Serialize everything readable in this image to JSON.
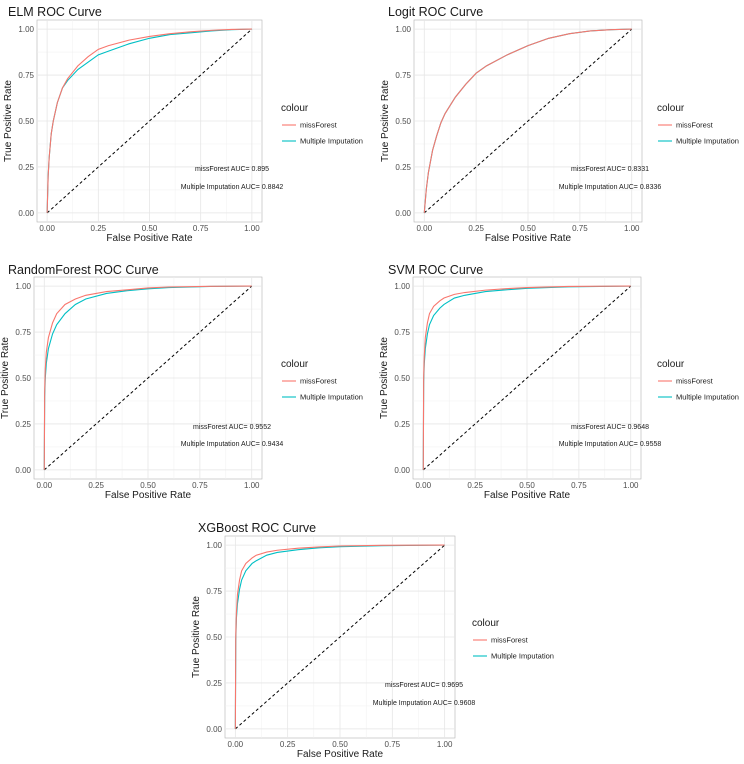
{
  "figure": {
    "legend": {
      "title": "colour",
      "entries": [
        {
          "label": "missForest",
          "color": "#F8766D"
        },
        {
          "label": "Multiple Imputation",
          "color": "#00BFC4"
        }
      ]
    }
  },
  "chart_data": [
    {
      "type": "line",
      "title": "ELM ROC Curve",
      "xlabel": "False Positive Rate",
      "ylabel": "True Positive Rate",
      "xlim": [
        0,
        1
      ],
      "ylim": [
        0,
        1
      ],
      "ticks": [
        "0.00",
        "0.25",
        "0.50",
        "0.75",
        "1.00"
      ],
      "diagonal": true,
      "series": [
        {
          "name": "missForest",
          "color": "#F8766D",
          "x": [
            0,
            0.005,
            0.01,
            0.02,
            0.03,
            0.05,
            0.075,
            0.1,
            0.15,
            0.2,
            0.25,
            0.3,
            0.4,
            0.5,
            0.6,
            0.7,
            0.8,
            0.9,
            1.0
          ],
          "y": [
            0,
            0.2,
            0.3,
            0.43,
            0.5,
            0.6,
            0.68,
            0.73,
            0.8,
            0.85,
            0.89,
            0.91,
            0.94,
            0.96,
            0.975,
            0.985,
            0.993,
            0.998,
            1.0
          ]
        },
        {
          "name": "Multiple Imputation",
          "color": "#00BFC4",
          "x": [
            0,
            0.005,
            0.01,
            0.02,
            0.03,
            0.05,
            0.075,
            0.1,
            0.15,
            0.2,
            0.25,
            0.3,
            0.4,
            0.5,
            0.6,
            0.7,
            0.8,
            0.9,
            1.0
          ],
          "y": [
            0,
            0.2,
            0.3,
            0.43,
            0.5,
            0.6,
            0.68,
            0.72,
            0.78,
            0.82,
            0.86,
            0.88,
            0.92,
            0.95,
            0.97,
            0.98,
            0.99,
            0.997,
            1.0
          ]
        }
      ],
      "annotations": [
        "missForest AUC= 0.895",
        "Multiple Imputation AUC= 0.8842"
      ]
    },
    {
      "type": "line",
      "title": "Logit ROC Curve",
      "xlabel": "False Positive Rate",
      "ylabel": "True Positive Rate",
      "xlim": [
        0,
        1
      ],
      "ylim": [
        0,
        1
      ],
      "ticks": [
        "0.00",
        "0.25",
        "0.50",
        "0.75",
        "1.00"
      ],
      "diagonal": true,
      "series": [
        {
          "name": "missForest",
          "color": "#F8766D",
          "x": [
            0,
            0.01,
            0.02,
            0.04,
            0.06,
            0.08,
            0.1,
            0.15,
            0.2,
            0.25,
            0.3,
            0.4,
            0.5,
            0.6,
            0.7,
            0.8,
            0.9,
            1.0
          ],
          "y": [
            0,
            0.13,
            0.22,
            0.34,
            0.42,
            0.49,
            0.54,
            0.63,
            0.7,
            0.76,
            0.8,
            0.86,
            0.91,
            0.95,
            0.975,
            0.99,
            0.997,
            1.0
          ]
        },
        {
          "name": "Multiple Imputation",
          "color": "#00BFC4",
          "x": [
            0,
            0.01,
            0.02,
            0.04,
            0.06,
            0.08,
            0.1,
            0.15,
            0.2,
            0.25,
            0.3,
            0.4,
            0.5,
            0.6,
            0.7,
            0.8,
            0.9,
            1.0
          ],
          "y": [
            0,
            0.13,
            0.22,
            0.34,
            0.42,
            0.49,
            0.54,
            0.63,
            0.7,
            0.76,
            0.8,
            0.86,
            0.91,
            0.95,
            0.975,
            0.99,
            0.997,
            1.0
          ]
        }
      ],
      "annotations": [
        "missForest AUC= 0.8331",
        "Multiple Imputation AUC= 0.8336"
      ]
    },
    {
      "type": "line",
      "title": "RandomForest ROC Curve",
      "xlabel": "False Positive Rate",
      "ylabel": "True Positive Rate",
      "xlim": [
        0,
        1
      ],
      "ylim": [
        0,
        1
      ],
      "ticks": [
        "0.00",
        "0.25",
        "0.50",
        "0.75",
        "1.00"
      ],
      "diagonal": true,
      "series": [
        {
          "name": "missForest",
          "color": "#F8766D",
          "x": [
            0,
            0.002,
            0.005,
            0.01,
            0.02,
            0.04,
            0.06,
            0.1,
            0.15,
            0.2,
            0.3,
            0.4,
            0.5,
            0.6,
            0.8,
            1.0
          ],
          "y": [
            0,
            0.42,
            0.55,
            0.64,
            0.72,
            0.8,
            0.85,
            0.9,
            0.93,
            0.95,
            0.97,
            0.98,
            0.99,
            0.995,
            0.999,
            1.0
          ]
        },
        {
          "name": "Multiple Imputation",
          "color": "#00BFC4",
          "x": [
            0,
            0.002,
            0.005,
            0.01,
            0.02,
            0.04,
            0.06,
            0.1,
            0.15,
            0.2,
            0.3,
            0.4,
            0.5,
            0.6,
            0.8,
            1.0
          ],
          "y": [
            0,
            0.4,
            0.5,
            0.58,
            0.66,
            0.74,
            0.79,
            0.85,
            0.9,
            0.93,
            0.96,
            0.975,
            0.985,
            0.992,
            0.998,
            1.0
          ]
        }
      ],
      "annotations": [
        "missForest AUC= 0.9552",
        "Multiple Imputation AUC= 0.9434"
      ]
    },
    {
      "type": "line",
      "title": "SVM ROC Curve",
      "xlabel": "False Positive Rate",
      "ylabel": "True Positive Rate",
      "xlim": [
        0,
        1
      ],
      "ylim": [
        0,
        1
      ],
      "ticks": [
        "0.00",
        "0.25",
        "0.50",
        "0.75",
        "1.00"
      ],
      "diagonal": true,
      "series": [
        {
          "name": "missForest",
          "color": "#F8766D",
          "x": [
            0,
            0.002,
            0.005,
            0.01,
            0.02,
            0.03,
            0.05,
            0.08,
            0.1,
            0.15,
            0.2,
            0.3,
            0.4,
            0.5,
            0.7,
            1.0
          ],
          "y": [
            0,
            0.5,
            0.62,
            0.72,
            0.8,
            0.85,
            0.89,
            0.92,
            0.935,
            0.955,
            0.965,
            0.978,
            0.986,
            0.992,
            0.998,
            1.0
          ]
        },
        {
          "name": "Multiple Imputation",
          "color": "#00BFC4",
          "x": [
            0,
            0.002,
            0.005,
            0.01,
            0.02,
            0.03,
            0.05,
            0.08,
            0.1,
            0.15,
            0.2,
            0.3,
            0.4,
            0.5,
            0.7,
            1.0
          ],
          "y": [
            0,
            0.48,
            0.58,
            0.66,
            0.74,
            0.79,
            0.84,
            0.88,
            0.9,
            0.935,
            0.95,
            0.97,
            0.98,
            0.988,
            0.996,
            1.0
          ]
        }
      ],
      "annotations": [
        "missForest AUC= 0.9648",
        "Multiple Imputation AUC= 0.9558"
      ]
    },
    {
      "type": "line",
      "title": "XGBoost ROC Curve",
      "xlabel": "False Positive Rate",
      "ylabel": "True Positive Rate",
      "xlim": [
        0,
        1
      ],
      "ylim": [
        0,
        1
      ],
      "ticks": [
        "0.00",
        "0.25",
        "0.50",
        "0.75",
        "1.00"
      ],
      "diagonal": true,
      "series": [
        {
          "name": "missForest",
          "color": "#F8766D",
          "x": [
            0,
            0.002,
            0.005,
            0.01,
            0.02,
            0.03,
            0.05,
            0.08,
            0.1,
            0.15,
            0.2,
            0.3,
            0.4,
            0.5,
            0.7,
            1.0
          ],
          "y": [
            0,
            0.5,
            0.63,
            0.73,
            0.81,
            0.86,
            0.9,
            0.93,
            0.945,
            0.962,
            0.972,
            0.983,
            0.99,
            0.995,
            0.999,
            1.0
          ]
        },
        {
          "name": "Multiple Imputation",
          "color": "#00BFC4",
          "x": [
            0,
            0.002,
            0.005,
            0.01,
            0.02,
            0.03,
            0.05,
            0.08,
            0.1,
            0.15,
            0.2,
            0.3,
            0.4,
            0.5,
            0.7,
            1.0
          ],
          "y": [
            0,
            0.48,
            0.6,
            0.68,
            0.76,
            0.81,
            0.86,
            0.9,
            0.915,
            0.945,
            0.96,
            0.975,
            0.985,
            0.991,
            0.997,
            1.0
          ]
        }
      ],
      "annotations": [
        "missForest AUC= 0.9695",
        "Multiple Imputation AUC= 0.9608"
      ]
    }
  ]
}
